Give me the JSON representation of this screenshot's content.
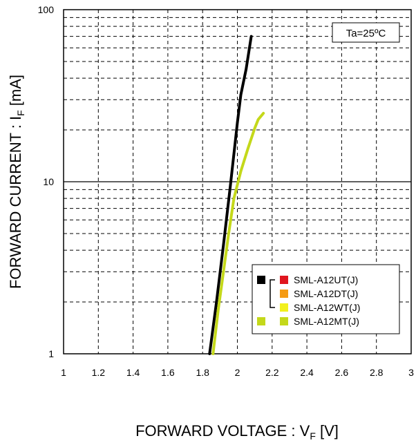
{
  "chart_data": {
    "type": "line",
    "title": "",
    "xlabel": {
      "main": "FORWARD VOLTAGE : V",
      "sub": "F",
      "unit": " [V]"
    },
    "ylabel": {
      "main": "FORWARD CURRENT : I",
      "sub": "F",
      "unit": " [mA]"
    },
    "xlim": [
      1,
      3
    ],
    "ylim": [
      1,
      100
    ],
    "y_scale": "log",
    "grid": true,
    "x_ticks": [
      "1",
      "1.2",
      "1.4",
      "1.6",
      "1.8",
      "2",
      "2.2",
      "2.4",
      "2.6",
      "2.8",
      "3"
    ],
    "y_ticks": [
      "1",
      "10",
      "100"
    ],
    "annotation": "Ta=25ºC",
    "legend_position": "bottom-right",
    "legend": [
      {
        "name": "SML-A12UT(J)",
        "marker_color": "#e0161e"
      },
      {
        "name": "SML-A12DT(J)",
        "marker_color": "#f59b14"
      },
      {
        "name": "SML-A12WT(J)",
        "marker_color": "#f2f01e"
      },
      {
        "name": "SML-A12MT(J)",
        "marker_color": "#c4d81a"
      }
    ],
    "series": [
      {
        "color": "#000000",
        "x": [
          1.84,
          1.88,
          1.92,
          1.96,
          2.0,
          2.02,
          2.05,
          2.08
        ],
        "y": [
          1.0,
          2.0,
          4.3,
          9.5,
          22,
          32,
          45,
          70
        ]
      },
      {
        "color": "#c4d81a",
        "x": [
          1.86,
          1.89,
          1.92,
          1.95,
          1.98,
          2.02,
          2.06,
          2.1,
          2.12,
          2.15
        ],
        "y": [
          1.0,
          1.8,
          3.0,
          5.0,
          8.0,
          11.5,
          15.5,
          20.5,
          23,
          25
        ]
      }
    ]
  }
}
